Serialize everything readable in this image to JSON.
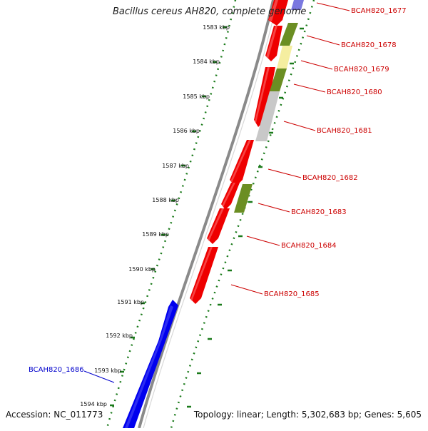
{
  "title": "Bacillus cereus AH820, complete genome",
  "accession": "Accession: NC_011773",
  "summary": "Topology: linear; Length: 5,302,683 bp; Genes: 5,605",
  "colors": {
    "forward_gene": "#ee0000",
    "reverse_gene": "#0000ee",
    "olive": "#6b8e23",
    "pale_yellow": "#f5eea0",
    "grey": "#c8c8c8",
    "backbone": "#8a8a8a",
    "ticks": "#1a7a1a",
    "label_red": "#cc0000",
    "label_blue": "#0000cc"
  },
  "ticks": [
    {
      "label": "1583 kbp"
    },
    {
      "label": "1584 kbp"
    },
    {
      "label": "1585 kbp"
    },
    {
      "label": "1586 kbp"
    },
    {
      "label": "1587 kbp"
    },
    {
      "label": "1588 kbp"
    },
    {
      "label": "1589 kbp"
    },
    {
      "label": "1590 kbp"
    },
    {
      "label": "1591 kbp"
    },
    {
      "label": "1592 kbp"
    },
    {
      "label": "1593 kbp"
    },
    {
      "label": "1594 kbp"
    }
  ],
  "genes": [
    {
      "label": "BCAH820_1677"
    },
    {
      "label": "BCAH820_1678"
    },
    {
      "label": "BCAH820_1679"
    },
    {
      "label": "BCAH820_1680"
    },
    {
      "label": "BCAH820_1681"
    },
    {
      "label": "BCAH820_1682"
    },
    {
      "label": "BCAH820_1683"
    },
    {
      "label": "BCAH820_1684"
    },
    {
      "label": "BCAH820_1685"
    },
    {
      "label": "BCAH820_1686"
    }
  ]
}
